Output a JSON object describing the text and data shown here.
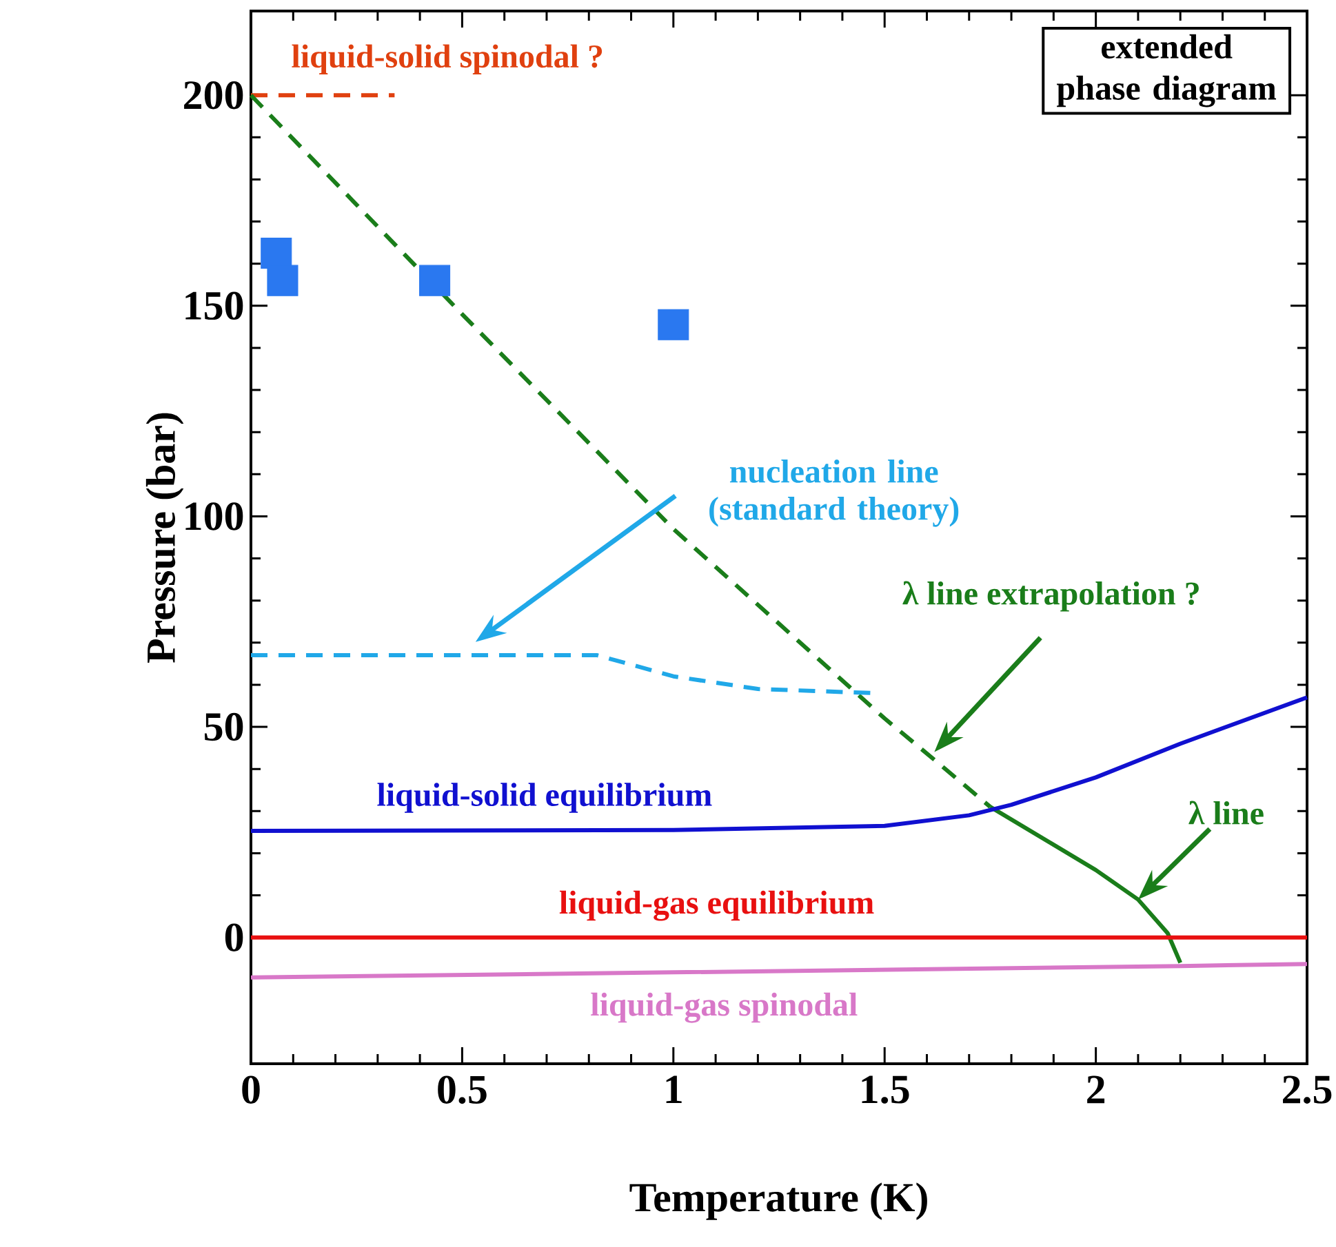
{
  "chart_data": {
    "type": "line",
    "xlabel": "Temperature   (K)",
    "ylabel": "Pressure  (bar)",
    "xlim": [
      0,
      2.5
    ],
    "ylim": [
      -30,
      220
    ],
    "xticks": [
      0,
      0.5,
      1,
      1.5,
      2,
      2.5
    ],
    "yticks": [
      0,
      50,
      100,
      150,
      200
    ],
    "grid": false,
    "legend": false,
    "series": [
      {
        "name": "liquid-solid spinodal ?",
        "color": "#e0400f",
        "line_style": "dashed",
        "x": [
          0,
          0.34
        ],
        "values": [
          200,
          200
        ]
      },
      {
        "color": "#1a7d1a",
        "line_style": "dashed",
        "x": [
          0,
          0.5,
          1,
          1.5,
          1.62,
          1.75
        ],
        "values": [
          200,
          148,
          97,
          52,
          42,
          31
        ]
      },
      {
        "color": "#1a7d1a",
        "line_style": "solid",
        "x": [
          1.75,
          1.9,
          2.0,
          2.1,
          2.17,
          2.2
        ],
        "values": [
          31,
          22,
          16,
          9,
          1,
          -6
        ]
      },
      {
        "color": "#20a8e8",
        "line_style": "dashed",
        "x": [
          0,
          0.53,
          0.82,
          1.0,
          1.2,
          1.48
        ],
        "values": [
          67,
          67,
          67,
          62,
          59,
          58
        ]
      },
      {
        "name": "liquid-solid equilibrium",
        "color": "#1010d0",
        "line_style": "solid",
        "x": [
          0,
          1,
          1.5,
          1.7,
          1.8,
          2.0,
          2.2,
          2.5
        ],
        "values": [
          25.3,
          25.5,
          26.5,
          29,
          31.5,
          38,
          46,
          57
        ]
      },
      {
        "name": "liquid-gas equilibrium",
        "color": "#e81010",
        "line_style": "solid",
        "x": [
          0,
          2.5
        ],
        "values": [
          0,
          0
        ]
      },
      {
        "name": "liquid-gas spinodal",
        "color": "#d878c8",
        "line_style": "solid",
        "x": [
          0,
          1,
          2.2,
          2.5
        ],
        "values": [
          -9.5,
          -8.3,
          -6.8,
          -6.3
        ]
      },
      {
        "type": "scatter",
        "marker": "square",
        "color": "#2a78f0",
        "x": [
          0.06,
          0.075,
          0.435,
          1.0
        ],
        "values": [
          162.5,
          156,
          156,
          145.5
        ]
      }
    ],
    "annotations": [
      "nucleation line (standard theory)",
      "λ line extrapolation ?",
      {
        "text": "λ line",
        "x": 2.1,
        "y": 9
      },
      "extended phase diagram"
    ]
  }
}
